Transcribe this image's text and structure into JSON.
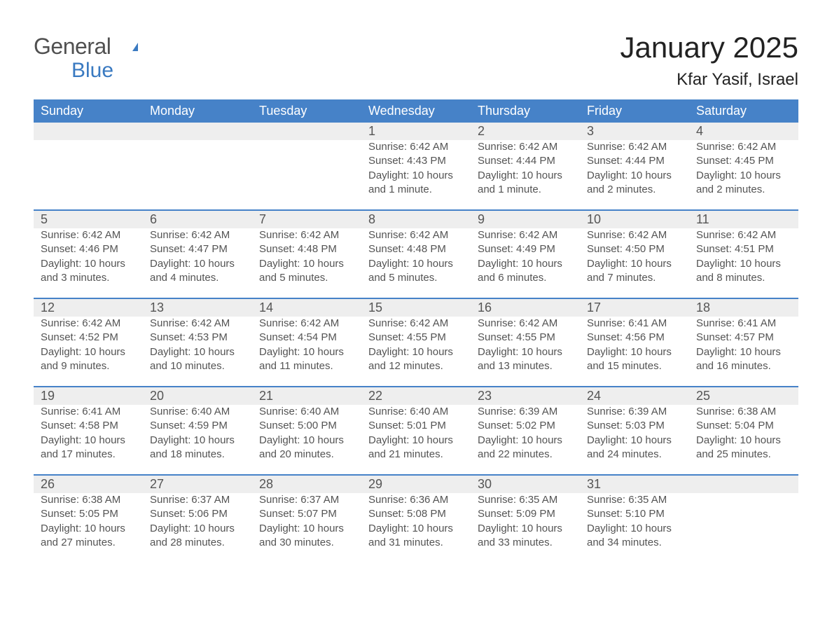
{
  "logo": {
    "line1": "General",
    "line2": "Blue"
  },
  "title": "January 2025",
  "location": "Kfar Yasif, Israel",
  "colors": {
    "header_blue": "#4682c8",
    "row_bg": "#eeeeee",
    "row_sep": "#4682c8",
    "logo_gray": "#505050",
    "logo_blue": "#3a7ac1"
  },
  "weekdays": [
    "Sunday",
    "Monday",
    "Tuesday",
    "Wednesday",
    "Thursday",
    "Friday",
    "Saturday"
  ],
  "weeks": [
    [
      null,
      null,
      null,
      {
        "day": "1",
        "sunrise": "Sunrise: 6:42 AM",
        "sunset": "Sunset: 4:43 PM",
        "d1": "Daylight: 10 hours",
        "d2": "and 1 minute."
      },
      {
        "day": "2",
        "sunrise": "Sunrise: 6:42 AM",
        "sunset": "Sunset: 4:44 PM",
        "d1": "Daylight: 10 hours",
        "d2": "and 1 minute."
      },
      {
        "day": "3",
        "sunrise": "Sunrise: 6:42 AM",
        "sunset": "Sunset: 4:44 PM",
        "d1": "Daylight: 10 hours",
        "d2": "and 2 minutes."
      },
      {
        "day": "4",
        "sunrise": "Sunrise: 6:42 AM",
        "sunset": "Sunset: 4:45 PM",
        "d1": "Daylight: 10 hours",
        "d2": "and 2 minutes."
      }
    ],
    [
      {
        "day": "5",
        "sunrise": "Sunrise: 6:42 AM",
        "sunset": "Sunset: 4:46 PM",
        "d1": "Daylight: 10 hours",
        "d2": "and 3 minutes."
      },
      {
        "day": "6",
        "sunrise": "Sunrise: 6:42 AM",
        "sunset": "Sunset: 4:47 PM",
        "d1": "Daylight: 10 hours",
        "d2": "and 4 minutes."
      },
      {
        "day": "7",
        "sunrise": "Sunrise: 6:42 AM",
        "sunset": "Sunset: 4:48 PM",
        "d1": "Daylight: 10 hours",
        "d2": "and 5 minutes."
      },
      {
        "day": "8",
        "sunrise": "Sunrise: 6:42 AM",
        "sunset": "Sunset: 4:48 PM",
        "d1": "Daylight: 10 hours",
        "d2": "and 5 minutes."
      },
      {
        "day": "9",
        "sunrise": "Sunrise: 6:42 AM",
        "sunset": "Sunset: 4:49 PM",
        "d1": "Daylight: 10 hours",
        "d2": "and 6 minutes."
      },
      {
        "day": "10",
        "sunrise": "Sunrise: 6:42 AM",
        "sunset": "Sunset: 4:50 PM",
        "d1": "Daylight: 10 hours",
        "d2": "and 7 minutes."
      },
      {
        "day": "11",
        "sunrise": "Sunrise: 6:42 AM",
        "sunset": "Sunset: 4:51 PM",
        "d1": "Daylight: 10 hours",
        "d2": "and 8 minutes."
      }
    ],
    [
      {
        "day": "12",
        "sunrise": "Sunrise: 6:42 AM",
        "sunset": "Sunset: 4:52 PM",
        "d1": "Daylight: 10 hours",
        "d2": "and 9 minutes."
      },
      {
        "day": "13",
        "sunrise": "Sunrise: 6:42 AM",
        "sunset": "Sunset: 4:53 PM",
        "d1": "Daylight: 10 hours",
        "d2": "and 10 minutes."
      },
      {
        "day": "14",
        "sunrise": "Sunrise: 6:42 AM",
        "sunset": "Sunset: 4:54 PM",
        "d1": "Daylight: 10 hours",
        "d2": "and 11 minutes."
      },
      {
        "day": "15",
        "sunrise": "Sunrise: 6:42 AM",
        "sunset": "Sunset: 4:55 PM",
        "d1": "Daylight: 10 hours",
        "d2": "and 12 minutes."
      },
      {
        "day": "16",
        "sunrise": "Sunrise: 6:42 AM",
        "sunset": "Sunset: 4:55 PM",
        "d1": "Daylight: 10 hours",
        "d2": "and 13 minutes."
      },
      {
        "day": "17",
        "sunrise": "Sunrise: 6:41 AM",
        "sunset": "Sunset: 4:56 PM",
        "d1": "Daylight: 10 hours",
        "d2": "and 15 minutes."
      },
      {
        "day": "18",
        "sunrise": "Sunrise: 6:41 AM",
        "sunset": "Sunset: 4:57 PM",
        "d1": "Daylight: 10 hours",
        "d2": "and 16 minutes."
      }
    ],
    [
      {
        "day": "19",
        "sunrise": "Sunrise: 6:41 AM",
        "sunset": "Sunset: 4:58 PM",
        "d1": "Daylight: 10 hours",
        "d2": "and 17 minutes."
      },
      {
        "day": "20",
        "sunrise": "Sunrise: 6:40 AM",
        "sunset": "Sunset: 4:59 PM",
        "d1": "Daylight: 10 hours",
        "d2": "and 18 minutes."
      },
      {
        "day": "21",
        "sunrise": "Sunrise: 6:40 AM",
        "sunset": "Sunset: 5:00 PM",
        "d1": "Daylight: 10 hours",
        "d2": "and 20 minutes."
      },
      {
        "day": "22",
        "sunrise": "Sunrise: 6:40 AM",
        "sunset": "Sunset: 5:01 PM",
        "d1": "Daylight: 10 hours",
        "d2": "and 21 minutes."
      },
      {
        "day": "23",
        "sunrise": "Sunrise: 6:39 AM",
        "sunset": "Sunset: 5:02 PM",
        "d1": "Daylight: 10 hours",
        "d2": "and 22 minutes."
      },
      {
        "day": "24",
        "sunrise": "Sunrise: 6:39 AM",
        "sunset": "Sunset: 5:03 PM",
        "d1": "Daylight: 10 hours",
        "d2": "and 24 minutes."
      },
      {
        "day": "25",
        "sunrise": "Sunrise: 6:38 AM",
        "sunset": "Sunset: 5:04 PM",
        "d1": "Daylight: 10 hours",
        "d2": "and 25 minutes."
      }
    ],
    [
      {
        "day": "26",
        "sunrise": "Sunrise: 6:38 AM",
        "sunset": "Sunset: 5:05 PM",
        "d1": "Daylight: 10 hours",
        "d2": "and 27 minutes."
      },
      {
        "day": "27",
        "sunrise": "Sunrise: 6:37 AM",
        "sunset": "Sunset: 5:06 PM",
        "d1": "Daylight: 10 hours",
        "d2": "and 28 minutes."
      },
      {
        "day": "28",
        "sunrise": "Sunrise: 6:37 AM",
        "sunset": "Sunset: 5:07 PM",
        "d1": "Daylight: 10 hours",
        "d2": "and 30 minutes."
      },
      {
        "day": "29",
        "sunrise": "Sunrise: 6:36 AM",
        "sunset": "Sunset: 5:08 PM",
        "d1": "Daylight: 10 hours",
        "d2": "and 31 minutes."
      },
      {
        "day": "30",
        "sunrise": "Sunrise: 6:35 AM",
        "sunset": "Sunset: 5:09 PM",
        "d1": "Daylight: 10 hours",
        "d2": "and 33 minutes."
      },
      {
        "day": "31",
        "sunrise": "Sunrise: 6:35 AM",
        "sunset": "Sunset: 5:10 PM",
        "d1": "Daylight: 10 hours",
        "d2": "and 34 minutes."
      },
      null
    ]
  ]
}
